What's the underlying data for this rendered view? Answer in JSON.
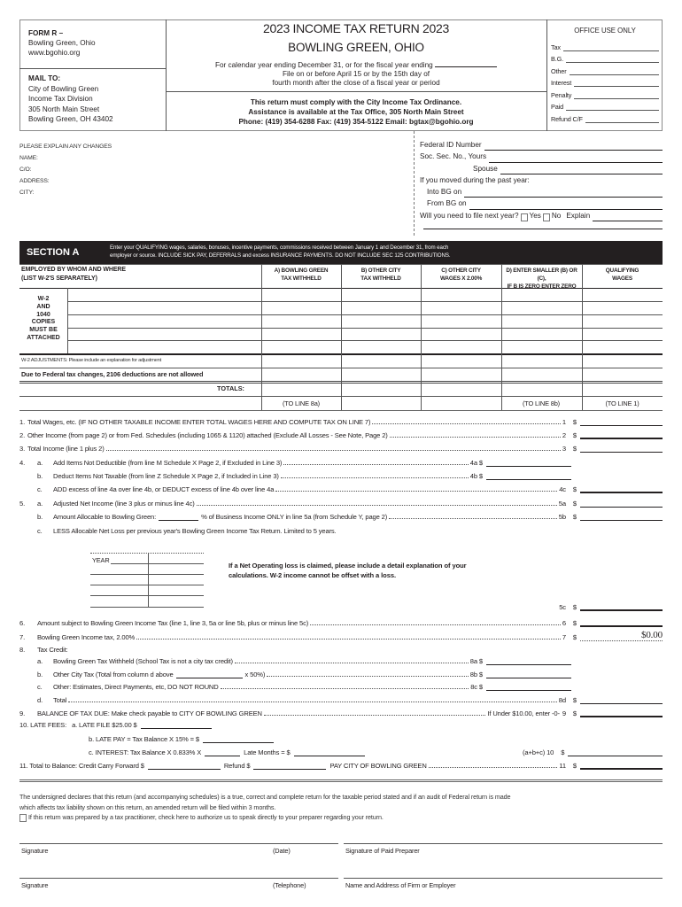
{
  "header": {
    "form_id": "FORM R –",
    "city_state": "Bowling Green, Ohio",
    "website": "www.bgohio.org",
    "mail_to_label": "MAIL TO:",
    "mail_to": [
      "City of Bowling Green",
      "Income Tax Division",
      "305 North Main Street",
      "Bowling Green, OH 43402"
    ],
    "title": "2023 INCOME TAX RETURN 2023",
    "subtitle": "BOWLING GREEN, OHIO",
    "period_text": "For calendar year ending December 31, or for the fiscal year ending",
    "due_line1": "File on or before April 15 or by the 15th day of",
    "due_line2": "fourth month after the close of a fiscal year or period",
    "notice1": "This return must comply with the City Income Tax Ordinance.",
    "notice2": "Assistance is available at the Tax Office, 305 North Main Street",
    "notice3": "Phone: (419) 354-6288 Fax: (419) 354-5122 Email: bgtax@bgohio.org"
  },
  "office_use": {
    "title": "OFFICE USE ONLY",
    "fields": [
      "Tax",
      "B.G.",
      "Other",
      "Interest",
      "Penalty",
      "Paid",
      "Refund C/F"
    ]
  },
  "taxpayer": {
    "explain": "PLEASE EXPLAIN ANY CHANGES",
    "name": "NAME:",
    "co": "C/O:",
    "address": "ADDRESS:",
    "city": "CITY:",
    "federal_id": "Federal ID Number",
    "ssn_yours": "Soc. Sec. No., Yours",
    "spouse": "Spouse",
    "moved": "If you moved during the past year:",
    "into_bg": "Into BG on",
    "from_bg": "From BG on",
    "file_next": "Will you need to file next year?",
    "yes": "Yes",
    "no": "No",
    "explain_label": "Explain"
  },
  "section_a": {
    "title": "SECTION A",
    "instr1": "Enter your QUALIFYING wages, salaries, bonuses, incentive payments, commissions received between January 1 and December 31, from each",
    "instr2": "employer or source. INCLUDE SICK PAY, DEFERRALS and excess INSURANCE PAYMENTS. DO NOT INCLUDE SEC 125 CONTRIBUTIONS.",
    "col_employer": [
      "EMPLOYED BY WHOM AND WHERE",
      "(LIST W-2'S SEPARATELY)"
    ],
    "columns": [
      [
        "A) BOWLING GREEN",
        "TAX WITHHELD"
      ],
      [
        "B) OTHER CITY",
        "TAX WITHHELD"
      ],
      [
        "C) OTHER CITY",
        "WAGES X 2.00%"
      ],
      [
        "D) ENTER SMALLER (B) OR (C),",
        "IF B IS ZERO ENTER ZERO"
      ],
      [
        "QUALIFYING",
        "WAGES"
      ]
    ],
    "attach_note": [
      "W-2",
      "AND",
      "1040",
      "COPIES",
      "MUST BE",
      "ATTACHED"
    ],
    "adjustments": "W-2 ADJUSTMENTS: Please include an explanation for adjustment",
    "federal_note": "Due to Federal tax changes, 2106 deductions are not allowed",
    "totals": "TOTALS:",
    "to_line": [
      "(TO LINE 8a)",
      "(TO LINE 8b)",
      "(TO LINE 1)"
    ]
  },
  "lines": [
    {
      "num": "1.",
      "letter": "",
      "text": "Total Wages, etc. (IF NO OTHER TAXABLE INCOME ENTER TOTAL WAGES HERE AND COMPUTE TAX ON LINE 7)",
      "ref": "1",
      "value": ""
    },
    {
      "num": "2.",
      "letter": "",
      "text": "Other Income (from page 2) or from Fed. Schedules (including 1065 & 1120) attached (Exclude All Losses - See Note, Page 2)",
      "ref": "2",
      "value": ""
    },
    {
      "num": "3.",
      "letter": "",
      "text": "Total Income (line 1 plus 2)",
      "ref": "3",
      "value": ""
    },
    {
      "num": "4.",
      "letter": "a.",
      "text": "Add Items Not Deductible (from line M Schedule X Page 2, if Excluded in Line 3)",
      "ref": "4a",
      "value": ""
    },
    {
      "num": "",
      "letter": "b.",
      "text": "Deduct Items Not Taxable (from line Z Schedule X Page 2, if Included in Line 3)",
      "ref": "4b",
      "value": ""
    },
    {
      "num": "",
      "letter": "c.",
      "text": "ADD excess of line 4a over line 4b, or DEDUCT excess of line 4b over line 4a",
      "ref": "4c",
      "value": ""
    },
    {
      "num": "5.",
      "letter": "a.",
      "text": "Adjusted Net Income (line 3 plus or minus line 4c)",
      "ref": "5a",
      "value": ""
    },
    {
      "num": "",
      "letter": "b.",
      "text": "Amount Allocable to Bowling Green:",
      "text2": "% of Business Income ONLY in line 5a (from Schedule Y, page 2)",
      "ref": "5b",
      "value": ""
    },
    {
      "num": "",
      "letter": "c.",
      "text": "LESS Allocable Net Loss per previous year's Bowling Green Income Tax Return. Limited to 5 years.",
      "ref": "",
      "value": ""
    },
    {
      "num": "",
      "letter": "",
      "text": "",
      "ref": "5c",
      "value": ""
    },
    {
      "num": "6.",
      "letter": "",
      "text": "Amount subject to Bowling Green Income Tax (line 1, line 3, 5a or line 5b, plus or minus line 5c)",
      "ref": "6",
      "value": ""
    },
    {
      "num": "7.",
      "letter": "",
      "text": "Bowling Green Income tax, 2.00%",
      "ref": "7",
      "value": "$0.00"
    },
    {
      "num": "8.",
      "letter": "",
      "text": "Tax Credit:",
      "ref": "",
      "value": ""
    },
    {
      "num": "",
      "letter": "a.",
      "text": "Bowling Green Tax Withheld (School Tax is not a city tax credit)",
      "ref": "8a",
      "value": ""
    },
    {
      "num": "",
      "letter": "b.",
      "text": "Other City Tax (Total from column d above",
      "text2": "x 50%)",
      "ref": "8b",
      "value": ""
    },
    {
      "num": "",
      "letter": "c.",
      "text": "Other: Estimates, Direct Payments, etc, DO NOT ROUND",
      "ref": "8c",
      "value": ""
    },
    {
      "num": "",
      "letter": "d.",
      "text": "Total",
      "ref": "8d",
      "value": ""
    },
    {
      "num": "9.",
      "letter": "",
      "text": "BALANCE OF TAX DUE: Make check payable to CITY OF BOWLING GREEN",
      "suffix": "If Under $10.00, enter -0-",
      "ref": "9",
      "value": ""
    }
  ],
  "nol": {
    "year_label": "YEAR",
    "note1": "If a Net Operating loss is claimed, please include a detail explanation of your",
    "note2": "calculations.  W-2 income cannot be offset with a loss."
  },
  "late_fees": {
    "label": "10. LATE FEES:",
    "a": "a. LATE FILE $25.00 $",
    "b": "b. LATE PAY = Tax Balance X 15% = $",
    "c1": "c. INTEREST: Tax Balance X 0.833% X",
    "c2": "Late Months = $",
    "sum": "(a+b+c) 10",
    "dollar": "$"
  },
  "line11": {
    "label": "11.  Total to Balance: Credit Carry Forward $",
    "refund": "Refund $",
    "pay": "PAY CITY OF BOWLING GREEN",
    "ref": "11",
    "dollar": "$"
  },
  "declaration": {
    "text1": "The undersigned declares that this return (and accompanying schedules) is a true, correct and complete return for the taxable period stated and if an audit of Federal return is made",
    "text2": "which affects tax liability shown on this return, an amended return will be filed within 3 months.",
    "preparer_check": "If this return was prepared by a tax practitioner, check here to authorize us to speak directly to your preparer regarding your return."
  },
  "signatures": {
    "signature1": "Signature",
    "date": "(Date)",
    "preparer": "Signature of Paid Preparer",
    "signature2": "Signature",
    "telephone": "(Telephone)",
    "firm": "Name and Address of Firm or Employer"
  }
}
